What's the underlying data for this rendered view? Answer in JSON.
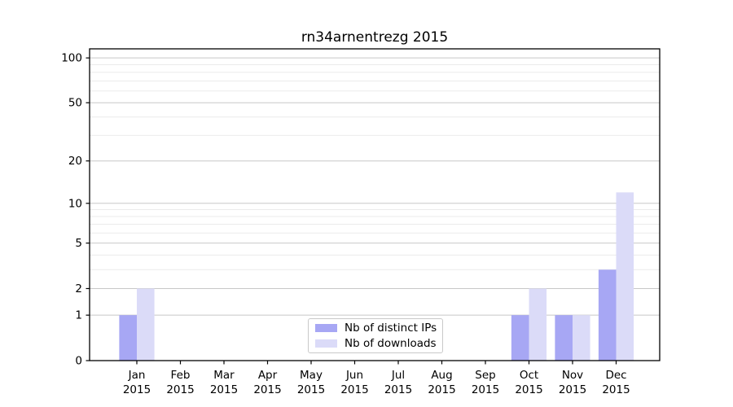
{
  "chart_data": {
    "type": "bar",
    "title": "rn34arnentrezg 2015",
    "categories": [
      {
        "month": "Jan",
        "year": "2015"
      },
      {
        "month": "Feb",
        "year": "2015"
      },
      {
        "month": "Mar",
        "year": "2015"
      },
      {
        "month": "Apr",
        "year": "2015"
      },
      {
        "month": "May",
        "year": "2015"
      },
      {
        "month": "Jun",
        "year": "2015"
      },
      {
        "month": "Jul",
        "year": "2015"
      },
      {
        "month": "Aug",
        "year": "2015"
      },
      {
        "month": "Sep",
        "year": "2015"
      },
      {
        "month": "Oct",
        "year": "2015"
      },
      {
        "month": "Nov",
        "year": "2015"
      },
      {
        "month": "Dec",
        "year": "2015"
      }
    ],
    "series": [
      {
        "name": "Nb of distinct IPs",
        "color": "#a7a7f4",
        "values": [
          1,
          0,
          0,
          0,
          0,
          0,
          0,
          0,
          0,
          1,
          1,
          3
        ]
      },
      {
        "name": "Nb of downloads",
        "color": "#dbdbf8",
        "values": [
          2,
          0,
          0,
          0,
          0,
          0,
          0,
          0,
          0,
          2,
          1,
          12
        ]
      }
    ],
    "y_axis": {
      "scale": "log1p",
      "ticks": [
        0,
        1,
        2,
        5,
        10,
        20,
        50,
        100
      ],
      "minor_gridlines": [
        3,
        4,
        6,
        7,
        8,
        9,
        30,
        40,
        60,
        70,
        80,
        90
      ],
      "top_value": 115
    },
    "xlabel": "",
    "ylabel": "",
    "grid": true,
    "legend_position": "lower center"
  },
  "colors": {
    "major_grid": "#c8c8c8",
    "minor_grid": "#ebebeb",
    "spine": "#000000",
    "tick_text": "#000000",
    "background": "#ffffff"
  }
}
